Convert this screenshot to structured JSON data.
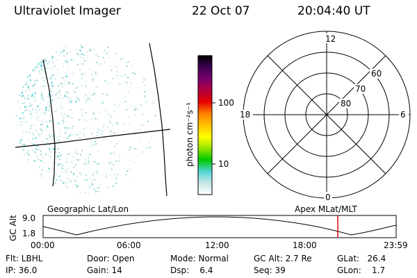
{
  "header": {
    "title": "Ultraviolet Imager",
    "date": "22 Oct 07",
    "time": "20:04:40 UT"
  },
  "colorbar": {
    "unit_label": "photon cm⁻²s⁻¹",
    "ticks": [
      "100",
      "10"
    ],
    "colors": [
      "#ffffff",
      "#c8e6e6",
      "#50d6d6",
      "#00c800",
      "#96e600",
      "#ffff00",
      "#ffc000",
      "#ff8000",
      "#e60000",
      "#b4003c",
      "#78006e",
      "#3c0050",
      "#000000"
    ]
  },
  "polar_plot": {
    "mlt_labels": {
      "top": "12",
      "left": "18",
      "right": "6",
      "bottom": "0"
    },
    "lat_labels": [
      "60",
      "70",
      "80"
    ]
  },
  "timeline": {
    "left_label": "Geographic Lat/Lon",
    "right_label": "Apex MLat/MLT",
    "ylabel": "GC Alt",
    "y_ticks": [
      "9.0",
      "1.8"
    ],
    "x_ticks": [
      "00:00",
      "06:00",
      "12:00",
      "18:00",
      "23:59"
    ],
    "current_time_marker": "20:04:40"
  },
  "status": {
    "filter": "Flt: LBHL",
    "ip": "IP: 36.0",
    "door": "Door: Open",
    "gain": "Gain: 14",
    "mode": "Mode: Normal",
    "dsp": "Dsp:    6.4",
    "gc_alt": "GC Alt: 2.7 Re",
    "seq": "Seq: 39",
    "glat": "GLat:   26.4",
    "glon": "GLon:    1.7"
  }
}
